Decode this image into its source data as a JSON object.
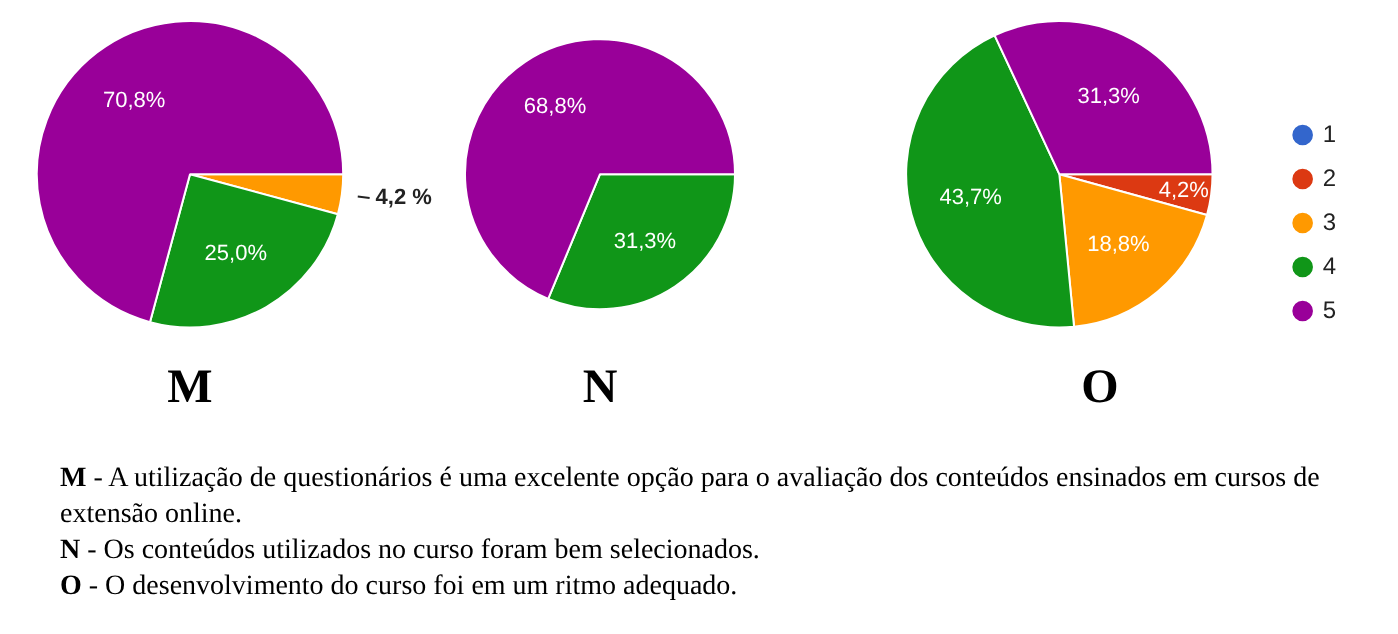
{
  "chart_data": [
    {
      "type": "pie",
      "title": "M",
      "categories": [
        null,
        null,
        null,
        null,
        null
      ],
      "values": [
        0,
        0,
        4.2,
        25.0,
        70.8
      ],
      "colors": [
        "#3366cc",
        "#dc3912",
        "#ff9900",
        "#109618",
        "#990099"
      ],
      "value_labels": [
        null,
        null,
        "4,2 %",
        "25,0%",
        "70,8%"
      ],
      "legend": false
    },
    {
      "type": "pie",
      "title": "N",
      "categories": [
        null,
        null,
        null,
        null,
        null
      ],
      "values": [
        0,
        0,
        0,
        31.3,
        68.8
      ],
      "colors": [
        "#3366cc",
        "#dc3912",
        "#ff9900",
        "#109618",
        "#990099"
      ],
      "value_labels": [
        null,
        null,
        null,
        "31,3%",
        "68,8%"
      ],
      "legend": false
    },
    {
      "type": "pie",
      "title": "O",
      "categories": [
        "1",
        "2",
        "3",
        "4",
        "5"
      ],
      "values": [
        0,
        4.2,
        18.8,
        43.7,
        31.3
      ],
      "colors": [
        "#3366cc",
        "#dc3912",
        "#ff9900",
        "#109618",
        "#990099"
      ],
      "value_labels": [
        null,
        "4,2%",
        "18,8%",
        "43,7%",
        "31,3%"
      ],
      "legend": "right"
    },
    {
      "type": "other",
      "annotations": [
        "M - A utilização de questionários é uma excelente opção para o avaliação dos conteúdos ensinados em cursos de extensão online.",
        "N - Os conteúdos utilizados no curso foram bem selecionados.",
        "O - O desenvolvimento do curso foi em um ritmo adequado."
      ]
    }
  ]
}
